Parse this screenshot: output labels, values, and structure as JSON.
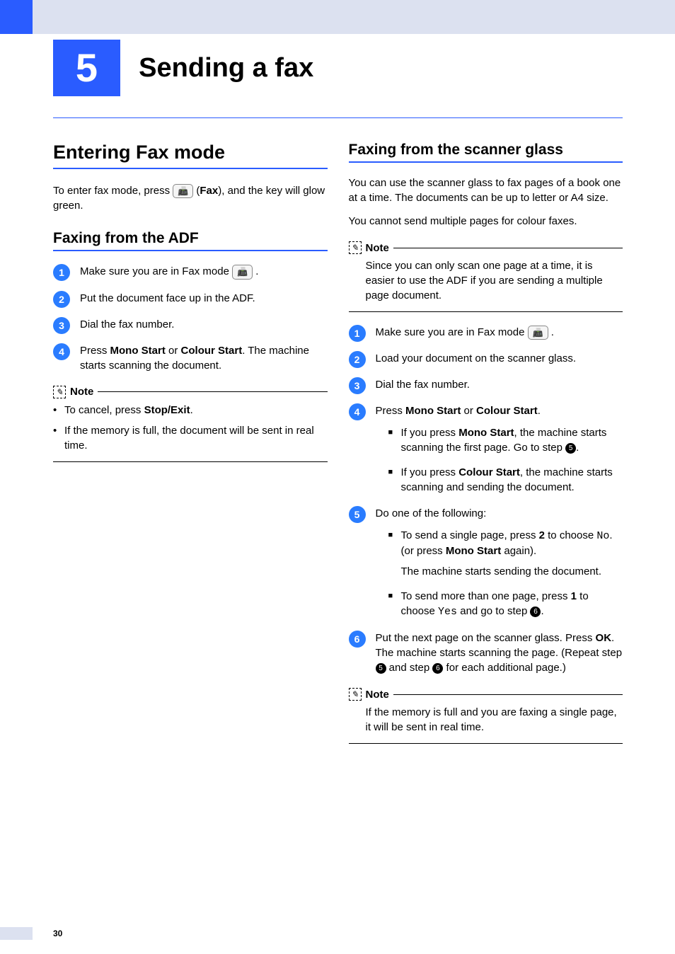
{
  "chapter": {
    "number": "5",
    "title": "Sending a fax"
  },
  "page_number": "30",
  "colors": {
    "accent": "#2a5cff",
    "header_bg": "#dce1f0",
    "step_badge": "#2a7cff"
  },
  "left": {
    "h1": "Entering Fax mode",
    "intro_a": "To enter fax mode, press ",
    "intro_b": " (",
    "intro_fax": "Fax",
    "intro_c": "), and the key will glow green.",
    "h2": "Faxing from the ADF",
    "steps": {
      "s1": "Make sure you are in Fax mode ",
      "s1_end": ".",
      "s2": "Put the document face up in the ADF.",
      "s3": "Dial the fax number.",
      "s4_a": "Press ",
      "s4_mono": "Mono Start",
      "s4_or": " or ",
      "s4_colour": "Colour Start",
      "s4_end": ". The machine starts scanning the document."
    },
    "note": {
      "title": "Note",
      "b1_a": "To cancel, press ",
      "b1_stop": "Stop/Exit",
      "b1_end": ".",
      "b2": "If the memory is full, the document will be sent in real time."
    }
  },
  "right": {
    "h2": "Faxing from the scanner glass",
    "p1": "You can use the scanner glass to fax pages of a book one at a time. The documents can be up to letter or A4 size.",
    "p2": "You cannot send multiple pages for colour faxes.",
    "note1": {
      "title": "Note",
      "body": "Since you can only scan one page at a time, it is easier to use the ADF if you are sending a multiple page document."
    },
    "steps": {
      "s1": "Make sure you are in Fax mode ",
      "s1_end": ".",
      "s2": "Load your document on the scanner glass.",
      "s3": "Dial the fax number.",
      "s4_a": "Press ",
      "s4_mono": "Mono Start",
      "s4_or": " or ",
      "s4_colour": "Colour Start",
      "s4_end": ".",
      "s4_sub1_a": "If you press ",
      "s4_sub1_mono": "Mono Start",
      "s4_sub1_b": ", the machine starts scanning the first page. Go to step ",
      "s4_sub1_ref": "5",
      "s4_sub1_end": ".",
      "s4_sub2_a": "If you press ",
      "s4_sub2_colour": "Colour Start",
      "s4_sub2_b": ", the machine starts scanning and sending the document.",
      "s5": "Do one of the following:",
      "s5_sub1_a": "To send a single page, press ",
      "s5_sub1_2": "2",
      "s5_sub1_b": " to choose ",
      "s5_sub1_no": "No",
      "s5_sub1_c": ". (or press ",
      "s5_sub1_mono": "Mono Start",
      "s5_sub1_d": " again).",
      "s5_sub1_follow": "The machine starts sending the document.",
      "s5_sub2_a": "To send more than one page, press ",
      "s5_sub2_1": "1",
      "s5_sub2_b": " to choose ",
      "s5_sub2_yes": "Yes",
      "s5_sub2_c": " and go to step ",
      "s5_sub2_ref": "6",
      "s5_sub2_end": ".",
      "s6_a": "Put the next page on the scanner glass. Press ",
      "s6_ok": "OK",
      "s6_b": ".",
      "s6_c": "The machine starts scanning the page. (Repeat step ",
      "s6_ref5": "5",
      "s6_d": " and step ",
      "s6_ref6": "6",
      "s6_e": " for each additional page.)"
    },
    "note2": {
      "title": "Note",
      "body": "If the memory is full and you are faxing a single page, it will be sent in real time."
    }
  }
}
